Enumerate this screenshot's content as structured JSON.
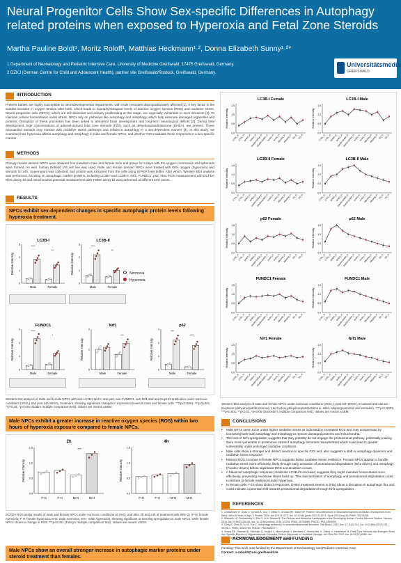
{
  "header": {
    "title": "Neural Progenitor Cells Show Sex-specific Differences in Autophagy related proteins when exposed to Hyperoxia and Fetal Zone Steroids",
    "authors": "Martha Pauline Boldt¹, Moritz Roloff¹, Matthias Heckmann¹·², Donna Elizabeth Sunny¹·²*",
    "affiliation1": "1 Department of Neonatology and Pediatric Intensive Care, University of Medicine Greifswald, 17475 Greifswald, Germany.",
    "affiliation2": "2 DZKJ (German Centre for Child and Adolescent Health), partner site Greifswald/Rostock, Greifswald, Germany.",
    "logo_text": "Universitätsmedizin",
    "logo_sub": "GREIFSWALD"
  },
  "intro": {
    "heading": "INTRODUCTION",
    "text": "Preterm babies are highly susceptible to neurodevelopmental impairments, with male neonates disproportionately affected [1]. A key factor is the sudden increase in oxygen tension after birth, which leads to supraphysiological levels of reactive oxygen species (ROS) and oxidative stress. Neural progenitor cells (NPCs), which are still abundant and actively proliferating at this stage, are especially vulnerable to such stressors [2]. To maintain cellular homeostasis under stress, NPCs rely on pathways like autophagy and mitophagy, which help eliminate damaged organelles and proteins. Disruption of these processes has been linked to abnormal brain development and long-term neurological deficits [3]. During fetal development, high concentrations of adrenal-derived fetal zone steroids (FZS), such as dehydroepiandrosterone (DHEA), are present. These neuroactive steroids may interact with oxidative stress pathways and influence autophagy in a sex-dependent manner [4]. In this study, we examined how hyperoxia affects autophagy and mitophagy in male and female NPCs, and whether FZS modulate these responses in a sex-specific manner."
  },
  "methods": {
    "heading": "METHODS",
    "text": "Primary mouse derived NPCs were obtained from newborn male and female mice and grown for 6 days with 3% oxygen (normoxia) until spheroids were formed. As well, human Refiedd VM cell line was used. Male and female derived NPCs were treated with 80% oxygen (hyperoxia) and steroids for 24h. Supernatant was collected, and protein was extracted from the cells using M-PER lysis buffer. After which, Western Blot analysis was performed, focusing on autophagic marker proteins, including LC3B-I and LC3B-II, Nrf1, FUNDC1, p62. Also, ROS measurement with DCFDA ROS assay kit and mitochondrial potential measurement with TMRE assay kit was performed at different time points."
  },
  "results": {
    "heading": "RESULTS",
    "banner1": "NPCs exhibit sex-dependent changes in specific autophagic protein levels following hyperoxia treatment.",
    "banner2": "Male NPCs exhibit a greater increase in reactive oxygen species (ROS) within two hours of hyperoxia exposure compared to female NPCs.",
    "banner3": "Male NPCs show an overall stronger increase in autophagic marker proteins under steroid treatment than females.",
    "legend_normoxia": "Normoxia",
    "legend_hyperoxia": "Hyperoxia",
    "ylabel": "Relative Intensity",
    "panels": [
      {
        "title": "LC3B-I",
        "male_n": 0.35,
        "male_h": 1.85,
        "female_n": 0.3,
        "female_h": 1.4,
        "sig_m": "****",
        "sig_f": "**"
      },
      {
        "title": "LC3B-II",
        "male_n": 0.6,
        "male_h": 2.2,
        "female_n": 0.5,
        "female_h": 1.0,
        "sig_m": "****",
        "sig_f": "**"
      },
      {
        "title": "FUNDC1",
        "male_n": 0.3,
        "male_h": 2.3,
        "female_n": 0.4,
        "female_h": 1.2,
        "sig_m": "****",
        "sig_f": "*"
      },
      {
        "title": "Nrf1",
        "male_n": 1.0,
        "male_h": 1.1,
        "female_n": 0.75,
        "female_h": 1.3,
        "sig_m": "",
        "sig_f": "***"
      },
      {
        "title": "p62",
        "male_n": 0.4,
        "male_h": 2.2,
        "female_n": 0.2,
        "female_h": 1.8,
        "sig_m": "***",
        "sig_f": "****"
      }
    ],
    "group_labels": [
      "Male",
      "Female"
    ],
    "caption1": "Western blot analysis of male and female NPCs with anti-LC3B-I and II, anti-p62, anti-FUNDC1, anti-Nrf1 and anti-Nup133 antibodies under normoxic conditions (3%O₂) and post 24h 80%O₂ treatment, showing significant changes in expression levels in male and female cells. ****p<0.0001, ***p<0.001, **p<0.01, *p<0.05 (Sidak's multiple comparison test). Values are means ±SEM.",
    "ros": [
      {
        "title": "2h",
        "values": [
          0.7,
          0.75,
          0.6,
          1.3
        ],
        "sig": "***"
      },
      {
        "title": "4h",
        "values": [
          0.55,
          0.6,
          0.65,
          0.95
        ],
        "sig": ""
      }
    ],
    "ros_categories": [
      "F-N",
      "F-H",
      "M-N",
      "M-H"
    ],
    "caption2": "DCFDA ROS assay results of male and female NPCs under normoxic conditions at 3%O₂ and after 2h and 24h of treatment with 80% O₂ (F-N: female normoxia; F-H: female hyperoxia; M-N: male normoxia; M-H: male hyperoxia), showing significant or trending upregulation in male NPCs, while female NPCs show no change in ROS. ***p<0.001 (Tukey's multiple comparison test). Values are means ±SEM."
  },
  "steroid_charts": {
    "categories": [
      "CTRL_N",
      "CTRL_H",
      "DHEA_N",
      "DHEA_H",
      "16aOH-DHEA_N",
      "16aOH-DHEA_H",
      "Andro_N",
      "Andro_H",
      "Allopreg_N",
      "Allopreg_H",
      "E2_N",
      "E2_H"
    ],
    "panels": [
      {
        "title": "LC3B-I Female",
        "values": [
          0.4,
          0.6,
          0.8,
          0.85,
          0.75,
          0.95,
          0.7,
          0.9,
          0.6,
          0.85,
          0.5,
          0.7
        ]
      },
      {
        "title": "LC3B-I Male",
        "values": [
          0.5,
          0.9,
          1.1,
          1.2,
          1.0,
          1.3,
          1.25,
          1.2,
          1.0,
          1.15,
          0.7,
          0.9
        ]
      },
      {
        "title": "LC3B-II Female",
        "values": [
          0.4,
          0.6,
          0.65,
          0.7,
          0.6,
          0.75,
          0.7,
          0.8,
          0.55,
          0.7,
          0.5,
          0.6
        ]
      },
      {
        "title": "LC3B-II Male",
        "values": [
          0.5,
          0.9,
          1.0,
          1.3,
          1.4,
          1.5,
          1.2,
          1.0,
          0.9,
          0.8,
          0.7,
          0.6
        ]
      },
      {
        "title": "p62 Female",
        "values": [
          0.5,
          0.9,
          0.6,
          0.8,
          0.7,
          0.9,
          0.85,
          1.0,
          0.9,
          1.05,
          0.8,
          0.7
        ]
      },
      {
        "title": "p62 Male",
        "values": [
          0.6,
          1.3,
          1.5,
          1.2,
          1.0,
          0.9,
          0.8,
          0.7,
          0.6,
          0.5,
          0.4,
          0.35
        ]
      },
      {
        "title": "FUNDC1 Female",
        "values": [
          0.5,
          0.8,
          0.9,
          0.85,
          0.9,
          0.95,
          0.9,
          1.0,
          0.8,
          0.9,
          0.7,
          0.6
        ]
      },
      {
        "title": "FUNDC1 Male",
        "values": [
          0.6,
          1.2,
          1.3,
          1.1,
          1.2,
          1.15,
          1.0,
          0.9,
          0.8,
          0.7,
          0.6,
          0.5
        ]
      },
      {
        "title": "Nrf1 Female",
        "values": [
          0.5,
          0.7,
          0.75,
          0.9,
          0.8,
          0.85,
          0.9,
          0.8,
          0.85,
          0.9,
          0.8,
          0.85
        ]
      },
      {
        "title": "Nrf1 Male",
        "values": [
          0.6,
          1.0,
          1.1,
          1.2,
          1.05,
          1.0,
          0.95,
          0.85,
          0.8,
          0.7,
          0.6,
          0.55
        ]
      }
    ],
    "caption": "Western Blot analysis of male and female NPCs under normoxic conditions (3%O₂), post 24h 80%O₂ treatment and steroid treatment (dehydroepiandrosterone, 16α-hydroxydehydroepiandrosterone, adiol, allopregnanolone and estradiol). ****p<0.0001, ***p<0.001, **p<0.01, *p<0.05 (Dunnette's multiple comparison test). Values are means ±SEM."
  },
  "conclusions": {
    "heading": "CONCLUSIONS",
    "items": [
      "Male NPCs seem to be under higher oxidative stress as indicated by increased ROS and may compensate by increasing both bulk autophagy and mitophagy to remove damaged proteins and mitochondria.",
      "The lack of Nrf1 upregulation suggests that they possibly do not engage the proteasomal pathway, potentially making them more vulnerable to proteotoxic stress if autophagy becomes overwhelmed which could lead to greater vulnerability under prolonged oxidative conditions.",
      "Male cells show a stronger and distinct reaction to specific FZS and, also suggests a shift in autophagy dynamics and oxidative stress response.",
      "Minimal ROS increase in female NPCs suggests better oxidative stress resilience. Female NPCs appear to handle oxidative stress more efficiently, likely through early activation of proteasomal degradation (Nrf1-driven) and mitophagy (Fundc1-driven) before significant ROS accumulation occurs.",
      "A balanced autophagic response (moderate LC3B-I/II increase) suggests they might maintain homeostasis more effectively, preventing excessive stress build-up. This dual activation of autophagy and proteasomal degradation could contribute to female resilience under hyperoxia.",
      "In female cells, FZS show distinct responses. DHEA treatment seems to bring about a disruption in autophagic flux and could indicate a potential shift towards proteasomal degradation through Nrf1 upregulation."
    ]
  },
  "references": {
    "heading": "REFERENCES",
    "items": [
      "1. Christensen R, Chau V, Synnes A, Guo T, Ufkes S, Grunau RE, Miller SP. Preterm Sex Differences in Neurodevelopment and Brain Development from Early Life to 8 Years of Age. J Pediatr. 2025 Jan;276:114271. doi: 10.1016/j.jpeds.2024.114271. Epub 2024 Aug 31. PMID: 39218208.",
      "2. Silbereis JC, Pochareddy S, Zhu Y, Li M, Sestan N. The Cellular and Molecular Landscapes of the Developing Human Central Nervous System. Neuron. 2016 Jan 20;89(2):248-68. doi: 10.1016/j.neuron.2015.12.008. PMID: 26796689; PMCID: PMC4959909.",
      "3. Dong Z, Zhou N, Lu M, Yue Z. Autophagy deficiency in neurodevelopmental disorders. Cell Biosci. 2021 Dec 17;11(1):214. doi: 10.1186/s13578-021-00726-x. PMID: 34920755; PMCID: PMC8684077.",
      "4. Sunny DE, Hammer E, Strempel S, Joseph C, Manchanda H, Ittermann T, Hentschker C, Völker U, Heckmann M. Fetal Zone Steroids and Estrogen Show Sex Specific Effects on Oligodendrocyte Precursor Cells in Response to Oxidative Damage. Int J Mol Sci. 2021 Jun 16;22(12):6586. doi: 10.3390/ijms22126586. PMID: 34205405; PMCID: PMC8233961."
    ]
  },
  "acknowledgement": {
    "heading": "ACKNOWLEDGEMENT and FUNDING",
    "text": "Funding: This work was funded by the Department of Neonatology and Pediatric Intensive Care",
    "contact": "Contact: s-mboldt@uni-greifswald.de"
  },
  "colors": {
    "header_bg": "#0d6ea3",
    "accent_orange": "#e07a12",
    "banner_orange": "#f6a347",
    "normoxia": "#ffffff",
    "hyperoxia": "#9c2d1a",
    "line_series": "#222222"
  }
}
